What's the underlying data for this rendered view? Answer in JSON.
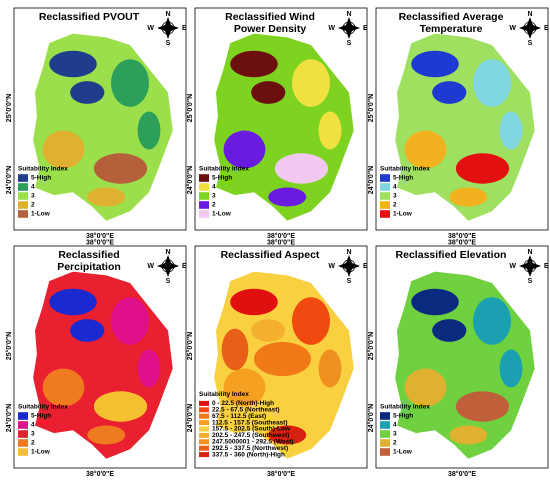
{
  "lon_label": "38°0'0\"E",
  "lat_labels": [
    "25°0'0\"N",
    "24°0'0\"N"
  ],
  "compass": {
    "n": "N",
    "e": "E",
    "s": "S",
    "w": "W"
  },
  "panels": [
    {
      "title": [
        "Reclassified PVOUT"
      ],
      "legend_title": "Suitability Index",
      "legend": [
        {
          "label": "5-High",
          "color": "#1f3d8c"
        },
        {
          "label": "4",
          "color": "#2ca05a"
        },
        {
          "label": "3",
          "color": "#9be04a"
        },
        {
          "label": "2",
          "color": "#e0b030"
        },
        {
          "label": "1-Low",
          "color": "#b5603a"
        }
      ]
    },
    {
      "title": [
        "Reclassified Wind",
        "Power Density"
      ],
      "legend_title": "Suitability Index",
      "legend": [
        {
          "label": "5-High",
          "color": "#6b0f0f"
        },
        {
          "label": "4",
          "color": "#f0e040"
        },
        {
          "label": "3",
          "color": "#7ed321"
        },
        {
          "label": "2",
          "color": "#6a1be0"
        },
        {
          "label": "1-Low",
          "color": "#f0c8f0"
        }
      ]
    },
    {
      "title": [
        "Reclassified Average",
        "Temperature"
      ],
      "legend_title": "Suitability Index",
      "legend": [
        {
          "label": "5-High",
          "color": "#1e3ad0"
        },
        {
          "label": "4",
          "color": "#7fd6e0"
        },
        {
          "label": "3",
          "color": "#a0e060"
        },
        {
          "label": "2",
          "color": "#f2b21f"
        },
        {
          "label": "1-Low",
          "color": "#e21010"
        }
      ]
    },
    {
      "title": [
        "Reclassified",
        "Percipitation"
      ],
      "legend_title": "Suitability Index",
      "legend": [
        {
          "label": "5-High",
          "color": "#1a2ad0"
        },
        {
          "label": "4",
          "color": "#e0108a"
        },
        {
          "label": "3",
          "color": "#e82030"
        },
        {
          "label": "2",
          "color": "#f07a20"
        },
        {
          "label": "1-Low",
          "color": "#f5c030"
        }
      ]
    },
    {
      "title": [
        "Reclassified Aspect"
      ],
      "legend_title": "Suitability Index",
      "legend": [
        {
          "label": "0 - 22.5 (North)-High",
          "color": "#e01010"
        },
        {
          "label": "22.5 - 67.5 (Northeast)",
          "color": "#f04a10"
        },
        {
          "label": "67.5 - 112.5 (East)",
          "color": "#f07a18"
        },
        {
          "label": "112.5 - 157.5 (Southeast)",
          "color": "#f5a020"
        },
        {
          "label": "157.5 - 202.5 (South)-Low",
          "color": "#f8d040"
        },
        {
          "label": "202.5 - 247.5 (Southwest)",
          "color": "#f5b030"
        },
        {
          "label": "247.5000001 - 292.5 (West)",
          "color": "#f09020"
        },
        {
          "label": "292.5 - 337.5 (Northwest)",
          "color": "#e86018"
        },
        {
          "label": "337.5 - 360 (North)-High",
          "color": "#d82010"
        }
      ]
    },
    {
      "title": [
        "Reclassified Elevation"
      ],
      "legend_title": "Suitability Index",
      "legend": [
        {
          "label": "5-High",
          "color": "#0a2a80"
        },
        {
          "label": "4",
          "color": "#1aa0b0"
        },
        {
          "label": "3",
          "color": "#6fd040"
        },
        {
          "label": "2",
          "color": "#e0b030"
        },
        {
          "label": "1-Low",
          "color": "#c0603a"
        }
      ]
    }
  ]
}
